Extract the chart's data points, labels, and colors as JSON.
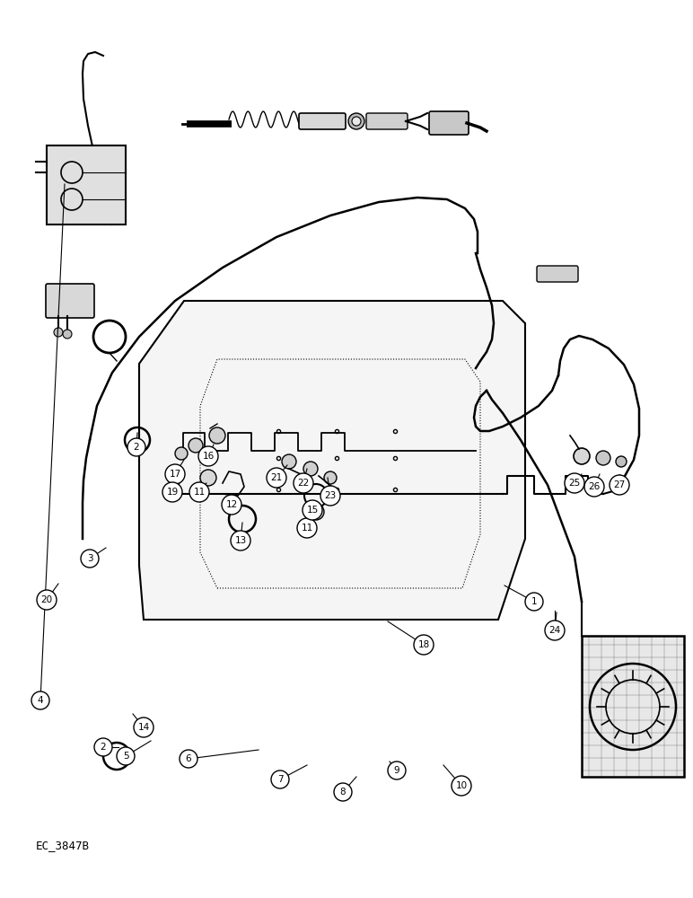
{
  "bg_color": "#ffffff",
  "line_color": "#000000",
  "label_color": "#000000",
  "footer_text": "EC_3847B"
}
